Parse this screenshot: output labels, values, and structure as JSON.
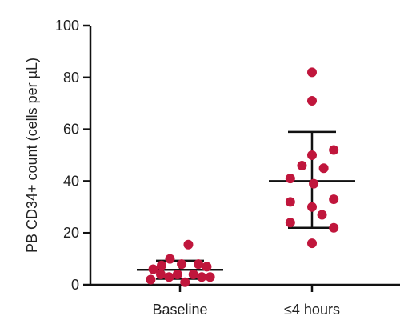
{
  "chart_data": {
    "type": "scatter",
    "title": "",
    "xlabel": "",
    "ylabel": "PB CD34+ count (cells per µL)",
    "ylim": [
      0,
      100
    ],
    "yticks": [
      0,
      20,
      40,
      60,
      80,
      100
    ],
    "grid": false,
    "legend": "none",
    "categories": [
      "Baseline",
      "≤4 hours"
    ],
    "groups": [
      {
        "category": "Baseline",
        "mean": 5.8,
        "sd_upper": 9.3,
        "sd_lower": 2.3,
        "points": [
          {
            "offset": -0.32,
            "y": 6
          },
          {
            "offset": -0.22,
            "y": 7.5
          },
          {
            "offset": -0.12,
            "y": 10
          },
          {
            "offset": 0.02,
            "y": 8
          },
          {
            "offset": 0.1,
            "y": 15.5
          },
          {
            "offset": 0.22,
            "y": 8
          },
          {
            "offset": 0.32,
            "y": 7
          },
          {
            "offset": -0.35,
            "y": 2
          },
          {
            "offset": -0.23,
            "y": 4
          },
          {
            "offset": -0.13,
            "y": 3
          },
          {
            "offset": -0.03,
            "y": 4
          },
          {
            "offset": 0.06,
            "y": 1
          },
          {
            "offset": 0.16,
            "y": 4
          },
          {
            "offset": 0.26,
            "y": 3
          },
          {
            "offset": 0.36,
            "y": 3
          }
        ]
      },
      {
        "category": "≤4 hours",
        "mean": 40,
        "sd_upper": 59,
        "sd_lower": 22,
        "points": [
          {
            "offset": 0.0,
            "y": 82
          },
          {
            "offset": 0.0,
            "y": 71
          },
          {
            "offset": 0.0,
            "y": 50
          },
          {
            "offset": 0.26,
            "y": 52
          },
          {
            "offset": -0.12,
            "y": 46
          },
          {
            "offset": 0.14,
            "y": 45
          },
          {
            "offset": -0.26,
            "y": 41
          },
          {
            "offset": 0.02,
            "y": 39
          },
          {
            "offset": -0.26,
            "y": 32
          },
          {
            "offset": 0.26,
            "y": 33
          },
          {
            "offset": 0.0,
            "y": 30
          },
          {
            "offset": -0.26,
            "y": 24
          },
          {
            "offset": 0.12,
            "y": 27
          },
          {
            "offset": 0.26,
            "y": 22
          },
          {
            "offset": 0.0,
            "y": 16
          }
        ]
      }
    ]
  },
  "colors": {
    "point": "#c0163c",
    "axis": "#111111",
    "errorbar": "#111111"
  }
}
